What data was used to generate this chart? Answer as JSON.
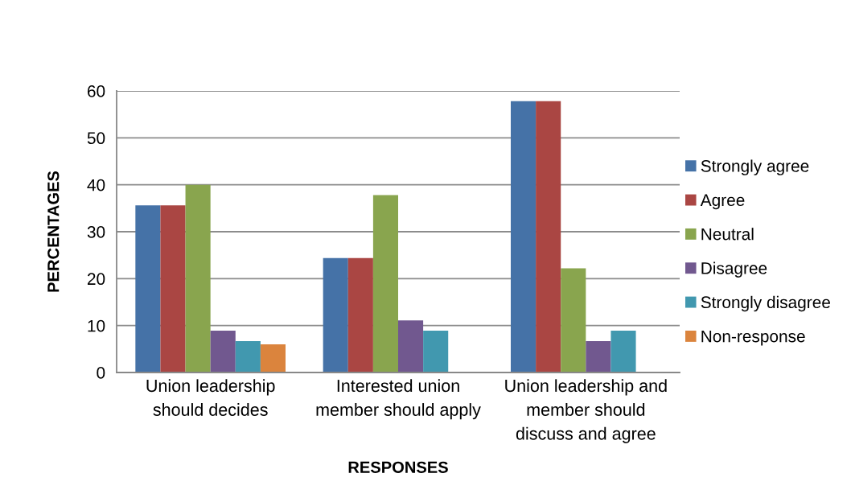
{
  "chart_data": {
    "type": "bar",
    "xlabel": "RESPONSES",
    "ylabel": "PERCENTAGES",
    "categories": [
      "Union leadership\nshould decides",
      "Interested union\nmember should apply",
      "Union leadership and\nmember should\ndiscuss and agree"
    ],
    "series": [
      {
        "name": "Strongly agree",
        "color": "#4572a7",
        "values": [
          35.6,
          24.4,
          57.8
        ]
      },
      {
        "name": "Agree",
        "color": "#aa4643",
        "values": [
          35.6,
          24.4,
          57.8
        ]
      },
      {
        "name": "Neutral",
        "color": "#89a54e",
        "values": [
          40,
          37.8,
          22.2
        ]
      },
      {
        "name": "Disagree",
        "color": "#71588f",
        "values": [
          8.9,
          11.1,
          6.7
        ]
      },
      {
        "name": "Strongly disagree",
        "color": "#4198af",
        "values": [
          6.7,
          8.9,
          8.9
        ]
      },
      {
        "name": "Non-response",
        "color": "#db843d",
        "values": [
          6,
          null,
          null
        ]
      }
    ],
    "ylim": [
      0,
      60
    ],
    "yticks": [
      0,
      10,
      20,
      30,
      40,
      50,
      60
    ],
    "grid": "y",
    "legend": "right"
  }
}
